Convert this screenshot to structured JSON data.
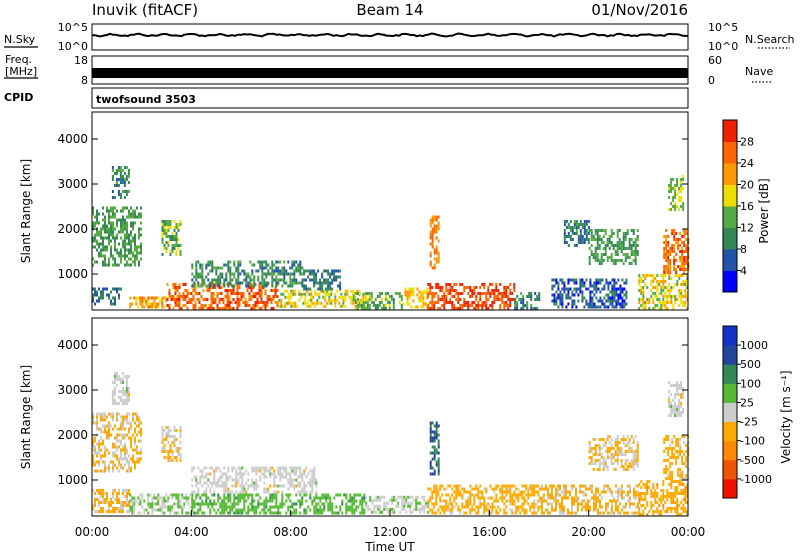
{
  "header": {
    "station": "Inuvik (fitACF)",
    "beam": "Beam 14",
    "date": "01/Nov/2016"
  },
  "noise_panel": {
    "left_label": "N.Sky",
    "right_label": "N.Search",
    "left_ticks": [
      "10^5",
      "10^0"
    ],
    "right_ticks": [
      "10^5",
      "10^0"
    ],
    "legend_left_style": "solid",
    "legend_right_style": "dotted"
  },
  "freq_panel": {
    "left_label_line1": "Freq.",
    "left_label_line2": "[MHz]",
    "right_label": "Nave",
    "left_ticks": [
      "18",
      "8"
    ],
    "right_ticks": [
      "60",
      "0"
    ]
  },
  "cpid_panel": {
    "label": "CPID",
    "program": "twofsound 3503"
  },
  "x_axis": {
    "label": "Time UT",
    "tick_labels": [
      "00:00",
      "04:00",
      "08:00",
      "12:00",
      "16:00",
      "20:00",
      "00:00"
    ],
    "range_hours": [
      0,
      24
    ]
  },
  "colors": {
    "power_scale": [
      "#0000ff",
      "#2255aa",
      "#338855",
      "#55aa44",
      "#eedd00",
      "#ff9900",
      "#ff6600",
      "#ee2200"
    ],
    "velocity_scale": [
      "#ee1100",
      "#ee5500",
      "#ff8800",
      "#ffaa00",
      "#cccccc",
      "#55bb33",
      "#338855",
      "#224499",
      "#1133cc"
    ]
  },
  "chart_data": [
    {
      "type": "heatmap",
      "name": "power",
      "ylabel": "Slant Range [km]",
      "y_ticks": [
        "1000",
        "2000",
        "3000",
        "4000"
      ],
      "ylim": [
        200,
        4600
      ],
      "colorbar": {
        "label": "Power [dB]",
        "tick_labels": [
          "4",
          "8",
          "12",
          "16",
          "20",
          "24",
          "28"
        ],
        "range": [
          0,
          32
        ]
      },
      "regions": [
        {
          "t0": 0.0,
          "t1": 2.0,
          "r0": 1200,
          "r1": 2500,
          "v": 12
        },
        {
          "t0": 0.8,
          "t1": 1.5,
          "r0": 2700,
          "r1": 3400,
          "v": 10
        },
        {
          "t0": 2.8,
          "t1": 3.6,
          "r0": 1400,
          "r1": 2200,
          "v": 14
        },
        {
          "t0": 0.0,
          "t1": 1.2,
          "r0": 300,
          "r1": 700,
          "v": 8
        },
        {
          "t0": 1.5,
          "t1": 3.0,
          "r0": 250,
          "r1": 500,
          "v": 22
        },
        {
          "t0": 3.0,
          "t1": 7.5,
          "r0": 250,
          "r1": 800,
          "v": 26
        },
        {
          "t0": 4.0,
          "t1": 8.5,
          "r0": 700,
          "r1": 1300,
          "v": 10
        },
        {
          "t0": 7.5,
          "t1": 11.0,
          "r0": 250,
          "r1": 650,
          "v": 18
        },
        {
          "t0": 8.5,
          "t1": 10.0,
          "r0": 650,
          "r1": 1100,
          "v": 8
        },
        {
          "t0": 10.5,
          "t1": 12.5,
          "r0": 250,
          "r1": 600,
          "v": 14
        },
        {
          "t0": 12.5,
          "t1": 13.5,
          "r0": 250,
          "r1": 700,
          "v": 20
        },
        {
          "t0": 13.6,
          "t1": 14.0,
          "r0": 1100,
          "r1": 2300,
          "v": 24
        },
        {
          "t0": 13.5,
          "t1": 17.0,
          "r0": 250,
          "r1": 800,
          "v": 28
        },
        {
          "t0": 17.0,
          "t1": 18.0,
          "r0": 250,
          "r1": 600,
          "v": 10
        },
        {
          "t0": 18.5,
          "t1": 21.5,
          "r0": 250,
          "r1": 900,
          "v": 6
        },
        {
          "t0": 20.0,
          "t1": 22.0,
          "r0": 1200,
          "r1": 2000,
          "v": 12
        },
        {
          "t0": 22.0,
          "t1": 24.0,
          "r0": 250,
          "r1": 1000,
          "v": 18
        },
        {
          "t0": 23.0,
          "t1": 24.0,
          "r0": 1000,
          "r1": 2000,
          "v": 26
        },
        {
          "t0": 23.2,
          "t1": 23.8,
          "r0": 2400,
          "r1": 3200,
          "v": 16
        },
        {
          "t0": 19.0,
          "t1": 20.0,
          "r0": 1600,
          "r1": 2200,
          "v": 9
        }
      ]
    },
    {
      "type": "heatmap",
      "name": "velocity",
      "ylabel": "Slant Range [km]",
      "y_ticks": [
        "1000",
        "2000",
        "3000",
        "4000"
      ],
      "ylim": [
        200,
        4600
      ],
      "colorbar": {
        "label": "Velocity [m s⁻¹]",
        "tick_labels": [
          "-1000",
          "-500",
          "-100",
          "-25",
          "25",
          "100",
          "500",
          "1000"
        ],
        "range": [
          -1250,
          1250
        ]
      },
      "regions": [
        {
          "t0": 0.0,
          "t1": 2.0,
          "r0": 1200,
          "r1": 2500,
          "v": -150
        },
        {
          "t0": 0.8,
          "t1": 1.5,
          "r0": 2700,
          "r1": 3400,
          "v": 0
        },
        {
          "t0": 2.8,
          "t1": 3.6,
          "r0": 1400,
          "r1": 2200,
          "v": -150
        },
        {
          "t0": 0.0,
          "t1": 1.5,
          "r0": 300,
          "r1": 800,
          "v": -200
        },
        {
          "t0": 1.5,
          "t1": 4.0,
          "r0": 250,
          "r1": 700,
          "v": 150
        },
        {
          "t0": 4.0,
          "t1": 9.0,
          "r0": 700,
          "r1": 1300,
          "v": 0
        },
        {
          "t0": 4.0,
          "t1": 11.0,
          "r0": 250,
          "r1": 700,
          "v": 300
        },
        {
          "t0": 11.0,
          "t1": 13.5,
          "r0": 250,
          "r1": 650,
          "v": 60
        },
        {
          "t0": 13.6,
          "t1": 14.0,
          "r0": 1100,
          "r1": 2300,
          "v": 700
        },
        {
          "t0": 13.5,
          "t1": 18.0,
          "r0": 250,
          "r1": 900,
          "v": -250
        },
        {
          "t0": 18.0,
          "t1": 22.0,
          "r0": 250,
          "r1": 900,
          "v": -200
        },
        {
          "t0": 20.0,
          "t1": 22.0,
          "r0": 1200,
          "r1": 2000,
          "v": -150
        },
        {
          "t0": 22.0,
          "t1": 24.0,
          "r0": 250,
          "r1": 1000,
          "v": -300
        },
        {
          "t0": 23.0,
          "t1": 24.0,
          "r0": 1000,
          "r1": 2000,
          "v": -250
        },
        {
          "t0": 23.2,
          "t1": 23.8,
          "r0": 2400,
          "r1": 3200,
          "v": 0
        }
      ]
    }
  ]
}
